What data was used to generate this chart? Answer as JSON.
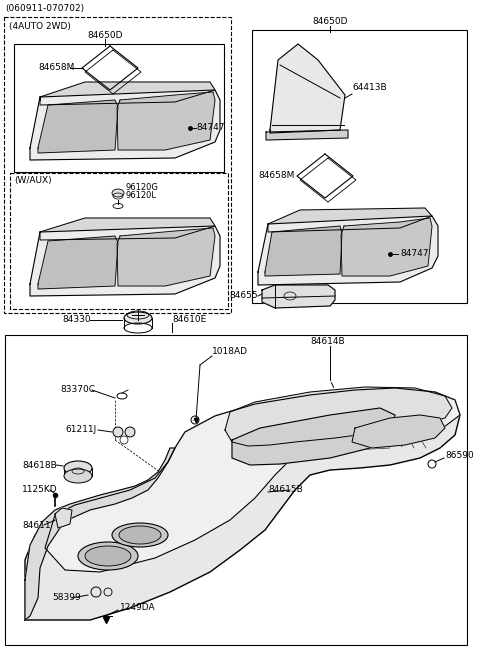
{
  "ref_number": "(060911-070702)",
  "bg_color": "#ffffff",
  "fig_width": 4.8,
  "fig_height": 6.56,
  "dpi": 100,
  "line_color": "#000000",
  "text_color": "#000000",
  "font_size": 6.2,
  "parts": {
    "top_left_label": "(4AUTO 2WD)",
    "wauxlabel": "(W/AUX)",
    "p84650D_L": "84650D",
    "p84658M_L": "84658M",
    "p84747_L": "84747",
    "p96120G": "96120G",
    "p96120L": "96120L",
    "p84650D_R": "84650D",
    "p64413B": "64413B",
    "p84658M_R": "84658M",
    "p84747_R": "84747",
    "p84655": "84655",
    "p84330": "84330",
    "p84610E": "84610E",
    "p84614B": "84614B",
    "p1018AD": "1018AD",
    "p83370C": "83370C",
    "p61211J": "61211J",
    "p84618B": "84618B",
    "p1125KD": "1125KD",
    "p84611": "84611",
    "p58399": "58399",
    "p1249DA": "1249DA",
    "p84615B": "84615B",
    "p86590": "86590"
  }
}
